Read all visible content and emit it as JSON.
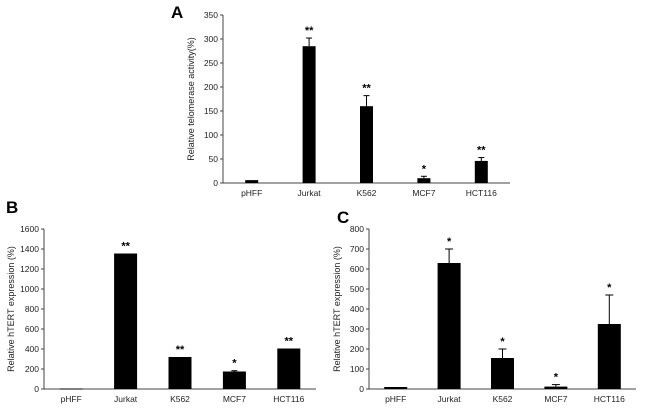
{
  "chart_data": [
    {
      "type": "bar",
      "panel": "A",
      "title": "",
      "xlabel": "",
      "ylabel": "Relative telomerase activity(%)",
      "categories": [
        "pHFF",
        "Jurkat",
        "K562",
        "MCF7",
        "HCT116"
      ],
      "values": [
        6,
        285,
        160,
        10,
        46
      ],
      "errors": [
        0,
        17,
        22,
        4,
        7
      ],
      "significance": [
        "",
        "**",
        "**",
        "*",
        "**"
      ],
      "ylim": [
        0,
        350
      ],
      "yticks": [
        0,
        50,
        100,
        150,
        200,
        250,
        300,
        350
      ],
      "grid": false,
      "legend": "none"
    },
    {
      "type": "bar",
      "panel": "B",
      "title": "",
      "xlabel": "",
      "ylabel": "Relative hTERT expression (%)",
      "categories": [
        "pHFF",
        "Jurkat",
        "K562",
        "MCF7",
        "HCT116"
      ],
      "values": [
        5,
        1355,
        320,
        175,
        405
      ],
      "errors": [
        0,
        0,
        0,
        8,
        0
      ],
      "significance": [
        "",
        "**",
        "**",
        "*",
        "**"
      ],
      "ylim": [
        0,
        1600
      ],
      "yticks": [
        0,
        200,
        400,
        600,
        800,
        1000,
        1200,
        1400,
        1600
      ],
      "grid": false,
      "legend": "none"
    },
    {
      "type": "bar",
      "panel": "C",
      "title": "",
      "xlabel": "",
      "ylabel": "Relative hTERT expression (%)",
      "categories": [
        "pHFF",
        "Jurkat",
        "K562",
        "MCF7",
        "HCT116"
      ],
      "values": [
        10,
        630,
        155,
        12,
        325
      ],
      "errors": [
        0,
        70,
        45,
        10,
        145
      ],
      "significance": [
        "",
        "*",
        "*",
        "*",
        "*"
      ],
      "ylim": [
        0,
        800
      ],
      "yticks": [
        0,
        100,
        200,
        300,
        400,
        500,
        600,
        700,
        800
      ],
      "grid": false,
      "legend": "none"
    }
  ]
}
